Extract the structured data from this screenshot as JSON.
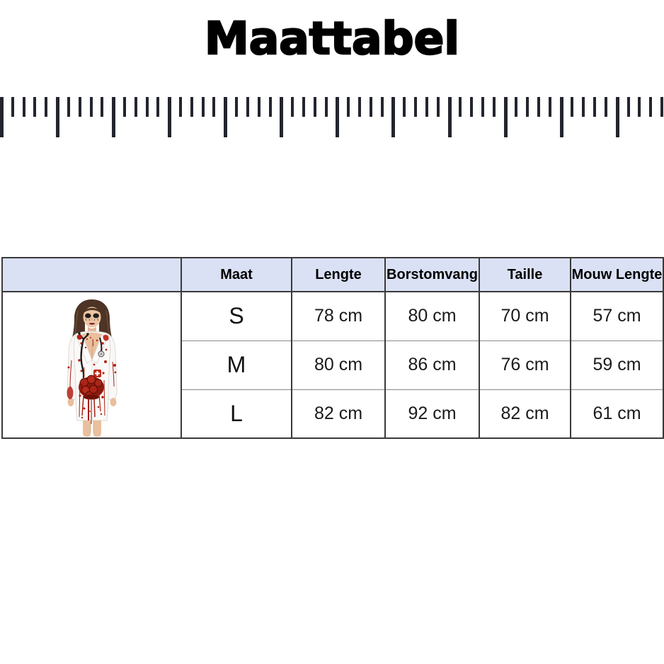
{
  "title": {
    "text": "Maattabel"
  },
  "ruler": {
    "description": "measuring-tape-graphic",
    "tick_count": 60,
    "major_every": 5,
    "color": "#23252e"
  },
  "size_table": {
    "header_bg": "#dbe1f4",
    "border_color": "#3a3a3a",
    "columns": [
      "",
      "Maat",
      "Lengte",
      "Borstomvang",
      "Taille",
      "Mouw Lengte"
    ],
    "rows": [
      {
        "maat": "S",
        "lengte": "78 cm",
        "borstomvang": "80 cm",
        "taille": "70 cm",
        "mouw_lengte": "57 cm"
      },
      {
        "maat": "M",
        "lengte": "80 cm",
        "borstomvang": "86 cm",
        "taille": "76 cm",
        "mouw_lengte": "59 cm"
      },
      {
        "maat": "L",
        "lengte": "82 cm",
        "borstomvang": "92 cm",
        "taille": "82 cm",
        "mouw_lengte": "61 cm"
      }
    ],
    "product_image_alt": "model wearing white bloody zombie-nurse halloween costume dress"
  },
  "palette": {
    "blood_red": "#b32114",
    "organ_dark_red": "#8e1a0e",
    "tick_dark": "#23252e",
    "header_lavender": "#dbe1f4"
  },
  "chart_data": {
    "type": "table",
    "title": "Maattabel",
    "columns": [
      "Maat",
      "Lengte",
      "Borstomvang",
      "Taille",
      "Mouw Lengte"
    ],
    "rows": [
      [
        "S",
        "78 cm",
        "80 cm",
        "70 cm",
        "57 cm"
      ],
      [
        "M",
        "80 cm",
        "86 cm",
        "76 cm",
        "59 cm"
      ],
      [
        "L",
        "82 cm",
        "92 cm",
        "82 cm",
        "61 cm"
      ]
    ]
  }
}
